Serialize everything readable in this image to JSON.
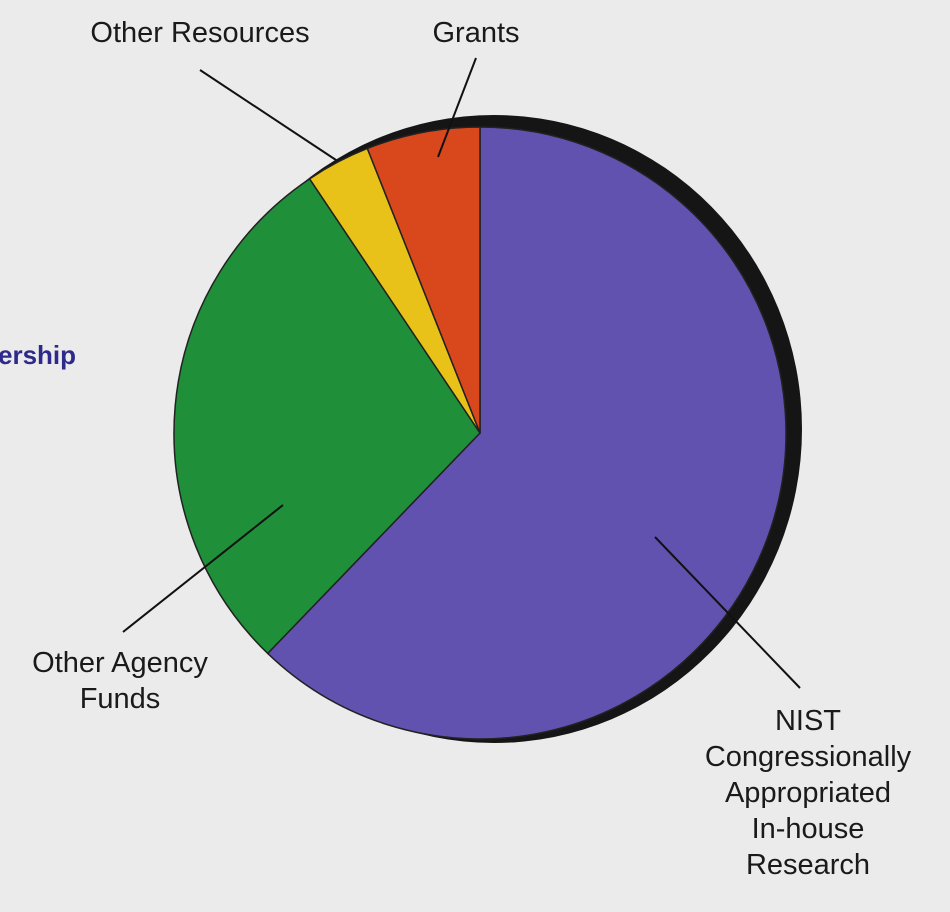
{
  "partial_heading": "ership",
  "chart_data": {
    "type": "pie",
    "title": "",
    "slices": [
      {
        "label": [
          "NIST",
          "Congressionally",
          "Appropriated",
          "In-house",
          "Research"
        ],
        "value": 62.2,
        "color": "#6252b0"
      },
      {
        "label": [
          "Other Agency",
          "Funds"
        ],
        "value": 28.4,
        "color": "#1f8f3a"
      },
      {
        "label": [
          "Other Resources"
        ],
        "value": 3.4,
        "color": "#e8c218"
      },
      {
        "label": [
          "Grants"
        ],
        "value": 6.0,
        "color": "#d8481c"
      }
    ],
    "start_angle_deg": 0,
    "direction": "clockwise",
    "shadow_color": "#151515"
  }
}
